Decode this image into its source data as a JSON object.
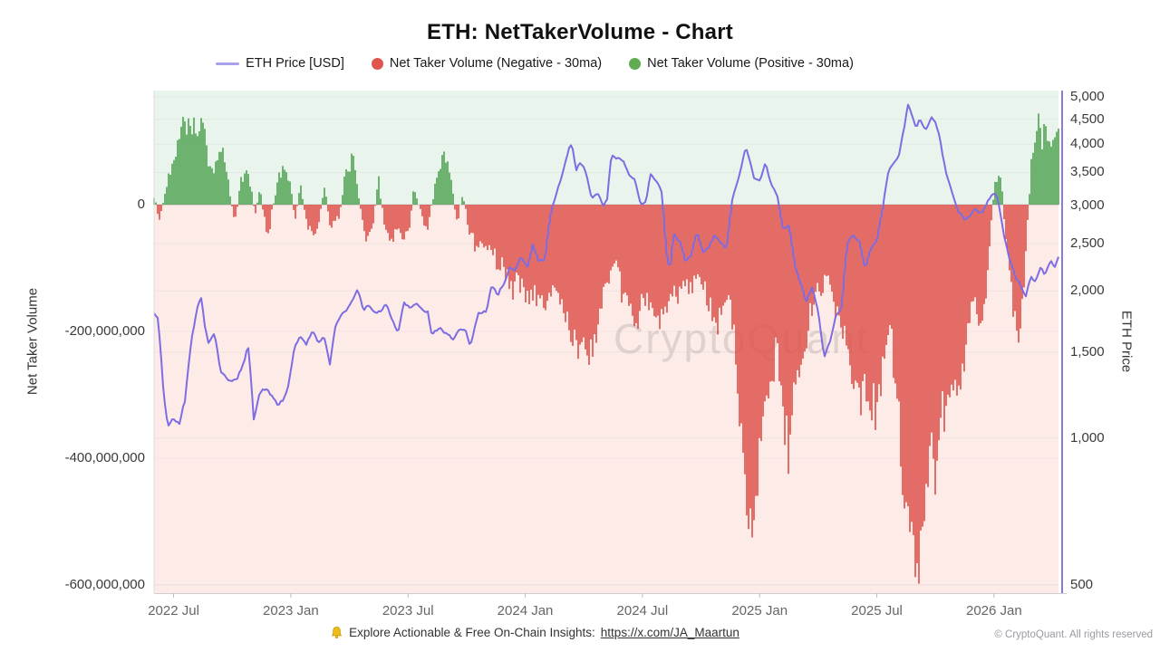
{
  "header": {
    "title": "ETH: NetTakerVolume - Chart"
  },
  "legend": [
    {
      "label": "ETH Price [USD]",
      "marker": "line",
      "color": "#a9a0ee"
    },
    {
      "label": "Net Taker Volume (Negative - 30ma)",
      "marker": "dot",
      "color": "#e0564f"
    },
    {
      "label": "Net Taker Volume (Positive - 30ma)",
      "marker": "dot",
      "color": "#61ab52"
    },
    {
      "label": "",
      "marker": "",
      "color": ""
    }
  ],
  "watermark": "CryptoQuant",
  "footer": {
    "bell_icon": "bell-icon",
    "text": "Explore Actionable & Free On-Chain Insights:",
    "link": "https://x.com/JA_Maartun",
    "copyright": "© CryptoQuant. All rights reserved"
  },
  "chart_data": {
    "type": "mixed-bar-line",
    "title": "ETH: NetTakerVolume - Chart",
    "x_axis": {
      "start": "2022-06",
      "months_total": 46.3,
      "labels": [
        {
          "label": "2022 Jul",
          "t": 1
        },
        {
          "label": "2023 Jan",
          "t": 7
        },
        {
          "label": "2023 Jul",
          "t": 13
        },
        {
          "label": "2024 Jan",
          "t": 19
        },
        {
          "label": "2024 Jul",
          "t": 25
        },
        {
          "label": "2025 Jan",
          "t": 31
        },
        {
          "label": "2025 Jul",
          "t": 37
        },
        {
          "label": "2026 Jan",
          "t": 43
        }
      ]
    },
    "volume_axis": {
      "title": "Net Taker Volume",
      "unit": "USD",
      "ticks": [
        0,
        -200000000,
        -400000000,
        -600000000
      ],
      "max_musd": 180,
      "min_musd": -613
    },
    "price_axis": {
      "title": "ETH Price",
      "scale": "log",
      "ticks": [
        5000,
        4500,
        4000,
        3500,
        3000,
        2500,
        2000,
        1500,
        1000,
        500
      ],
      "max": 5155,
      "min": 481
    },
    "colors": {
      "bar_positive": "#57a759",
      "bar_negative": "#e0564f",
      "price_line": "#7d6ce2",
      "right_axis_line": "#8a7ae0",
      "bg_positive": "#e9f4ec",
      "bg_negative": "#fcebe7"
    },
    "series_names": [
      "ETH Price [USD]",
      "Net Taker Volume (Negative - 30ma)",
      "Net Taker Volume (Positive - 30ma)"
    ],
    "volume_points_musd": [
      [
        0,
        10
      ],
      [
        0.3,
        -25
      ],
      [
        0.7,
        40
      ],
      [
        1,
        75
      ],
      [
        1.3,
        115
      ],
      [
        1.6,
        140
      ],
      [
        1.9,
        125
      ],
      [
        2.2,
        118
      ],
      [
        2.5,
        130
      ],
      [
        2.7,
        90
      ],
      [
        3,
        45
      ],
      [
        3.2,
        70
      ],
      [
        3.5,
        84
      ],
      [
        3.8,
        40
      ],
      [
        4.1,
        -35
      ],
      [
        4.4,
        30
      ],
      [
        4.7,
        55
      ],
      [
        5,
        25
      ],
      [
        5.2,
        -20
      ],
      [
        5.4,
        30
      ],
      [
        5.8,
        -55
      ],
      [
        6.2,
        20
      ],
      [
        6.6,
        65
      ],
      [
        7,
        30
      ],
      [
        7.2,
        -25
      ],
      [
        7.5,
        35
      ],
      [
        7.9,
        -40
      ],
      [
        8.3,
        -53
      ],
      [
        8.7,
        25
      ],
      [
        9.1,
        -40
      ],
      [
        9.5,
        -20
      ],
      [
        9.8,
        50
      ],
      [
        10.1,
        75
      ],
      [
        10.4,
        40
      ],
      [
        10.8,
        -60
      ],
      [
        11.2,
        -30
      ],
      [
        11.5,
        45
      ],
      [
        11.8,
        -35
      ],
      [
        12.2,
        -55
      ],
      [
        12.6,
        -40
      ],
      [
        13,
        -50
      ],
      [
        13.3,
        25
      ],
      [
        13.7,
        -20
      ],
      [
        14,
        -45
      ],
      [
        14.4,
        30
      ],
      [
        14.8,
        77
      ],
      [
        15.1,
        60
      ],
      [
        15.5,
        -30
      ],
      [
        15.8,
        15
      ],
      [
        16.2,
        -45
      ],
      [
        16.6,
        -70
      ],
      [
        17,
        -60
      ],
      [
        17.4,
        -80
      ],
      [
        17.8,
        -95
      ],
      [
        18.3,
        -130
      ],
      [
        18.8,
        -120
      ],
      [
        19.2,
        -150
      ],
      [
        19.6,
        -140
      ],
      [
        20,
        -160
      ],
      [
        20.4,
        -130
      ],
      [
        20.8,
        -150
      ],
      [
        21.2,
        -180
      ],
      [
        21.6,
        -235
      ],
      [
        22,
        -210
      ],
      [
        22.4,
        -245
      ],
      [
        22.8,
        -175
      ],
      [
        23.2,
        -120
      ],
      [
        23.5,
        -100
      ],
      [
        23.9,
        -130
      ],
      [
        24.3,
        -165
      ],
      [
        24.7,
        -180
      ],
      [
        25.1,
        -150
      ],
      [
        25.5,
        -170
      ],
      [
        25.9,
        -185
      ],
      [
        26.3,
        -160
      ],
      [
        26.7,
        -140
      ],
      [
        27.1,
        -115
      ],
      [
        27.5,
        -135
      ],
      [
        27.9,
        -105
      ],
      [
        28.3,
        -160
      ],
      [
        28.7,
        -196
      ],
      [
        29.1,
        -170
      ],
      [
        29.5,
        -145
      ],
      [
        29.8,
        -250
      ],
      [
        30.1,
        -400
      ],
      [
        30.4,
        -520
      ],
      [
        30.7,
        -480
      ],
      [
        31,
        -360
      ],
      [
        31.3,
        -300
      ],
      [
        31.6,
        -280
      ],
      [
        31.9,
        -230
      ],
      [
        32.2,
        -340
      ],
      [
        32.5,
        -377
      ],
      [
        32.8,
        -300
      ],
      [
        33.2,
        -250
      ],
      [
        33.6,
        -180
      ],
      [
        34,
        -130
      ],
      [
        34.4,
        -110
      ],
      [
        34.8,
        -150
      ],
      [
        35.2,
        -190
      ],
      [
        35.6,
        -245
      ],
      [
        36,
        -280
      ],
      [
        36.4,
        -315
      ],
      [
        36.8,
        -334
      ],
      [
        37.2,
        -290
      ],
      [
        37.6,
        -180
      ],
      [
        37.9,
        -250
      ],
      [
        38.2,
        -400
      ],
      [
        38.5,
        -480
      ],
      [
        38.8,
        -530
      ],
      [
        39.1,
        -575
      ],
      [
        39.4,
        -490
      ],
      [
        39.7,
        -400
      ],
      [
        40,
        -430
      ],
      [
        40.3,
        -350
      ],
      [
        40.7,
        -310
      ],
      [
        41.1,
        -280
      ],
      [
        41.5,
        -230
      ],
      [
        41.9,
        -150
      ],
      [
        42.3,
        -200
      ],
      [
        42.7,
        -110
      ],
      [
        43,
        25
      ],
      [
        43.2,
        54
      ],
      [
        43.4,
        40
      ],
      [
        43.6,
        -60
      ],
      [
        43.9,
        -130
      ],
      [
        44.2,
        -225
      ],
      [
        44.5,
        -160
      ],
      [
        44.7,
        -40
      ],
      [
        44.9,
        60
      ],
      [
        45.1,
        100
      ],
      [
        45.3,
        140
      ],
      [
        45.5,
        95
      ],
      [
        45.7,
        130
      ],
      [
        45.9,
        80
      ],
      [
        46.1,
        120
      ],
      [
        46.3,
        105
      ]
    ],
    "price_points_usd": [
      [
        0,
        1800
      ],
      [
        0.2,
        1760
      ],
      [
        0.5,
        1210
      ],
      [
        0.7,
        1060
      ],
      [
        1,
        1100
      ],
      [
        1.3,
        1070
      ],
      [
        1.6,
        1200
      ],
      [
        1.9,
        1580
      ],
      [
        2.2,
        1830
      ],
      [
        2.4,
        1930
      ],
      [
        2.6,
        1700
      ],
      [
        2.8,
        1550
      ],
      [
        3.1,
        1640
      ],
      [
        3.4,
        1350
      ],
      [
        3.7,
        1320
      ],
      [
        4,
        1310
      ],
      [
        4.3,
        1340
      ],
      [
        4.6,
        1420
      ],
      [
        4.8,
        1560
      ],
      [
        5.1,
        1090
      ],
      [
        5.4,
        1230
      ],
      [
        5.7,
        1260
      ],
      [
        6,
        1230
      ],
      [
        6.3,
        1180
      ],
      [
        6.6,
        1190
      ],
      [
        6.9,
        1290
      ],
      [
        7.2,
        1540
      ],
      [
        7.5,
        1620
      ],
      [
        7.8,
        1560
      ],
      [
        8.1,
        1670
      ],
      [
        8.4,
        1560
      ],
      [
        8.7,
        1610
      ],
      [
        9,
        1420
      ],
      [
        9.3,
        1720
      ],
      [
        9.6,
        1790
      ],
      [
        9.9,
        1850
      ],
      [
        10.2,
        1920
      ],
      [
        10.4,
        2010
      ],
      [
        10.7,
        1830
      ],
      [
        11,
        1870
      ],
      [
        11.3,
        1790
      ],
      [
        11.6,
        1830
      ],
      [
        11.9,
        1880
      ],
      [
        12.2,
        1730
      ],
      [
        12.5,
        1650
      ],
      [
        12.8,
        1890
      ],
      [
        13.1,
        1870
      ],
      [
        13.4,
        1890
      ],
      [
        13.7,
        1840
      ],
      [
        14,
        1830
      ],
      [
        14.2,
        1640
      ],
      [
        14.6,
        1680
      ],
      [
        15,
        1630
      ],
      [
        15.3,
        1590
      ],
      [
        15.6,
        1660
      ],
      [
        15.9,
        1670
      ],
      [
        16.2,
        1550
      ],
      [
        16.6,
        1790
      ],
      [
        17,
        1810
      ],
      [
        17.3,
        2050
      ],
      [
        17.6,
        1970
      ],
      [
        17.9,
        2060
      ],
      [
        18.2,
        2250
      ],
      [
        18.5,
        2200
      ],
      [
        18.8,
        2360
      ],
      [
        19.1,
        2230
      ],
      [
        19.4,
        2480
      ],
      [
        19.7,
        2300
      ],
      [
        20,
        2320
      ],
      [
        20.3,
        2900
      ],
      [
        20.6,
        3180
      ],
      [
        20.9,
        3450
      ],
      [
        21.2,
        3900
      ],
      [
        21.4,
        4000
      ],
      [
        21.6,
        3540
      ],
      [
        21.8,
        3680
      ],
      [
        22.1,
        3520
      ],
      [
        22.4,
        3080
      ],
      [
        22.7,
        3180
      ],
      [
        23,
        2980
      ],
      [
        23.2,
        3100
      ],
      [
        23.4,
        3780
      ],
      [
        23.7,
        3740
      ],
      [
        24,
        3680
      ],
      [
        24.3,
        3460
      ],
      [
        24.6,
        3380
      ],
      [
        24.9,
        3020
      ],
      [
        25.2,
        3080
      ],
      [
        25.4,
        3490
      ],
      [
        25.7,
        3380
      ],
      [
        26,
        3170
      ],
      [
        26.2,
        2450
      ],
      [
        26.4,
        2190
      ],
      [
        26.6,
        2620
      ],
      [
        26.9,
        2520
      ],
      [
        27.2,
        2310
      ],
      [
        27.5,
        2360
      ],
      [
        27.8,
        2640
      ],
      [
        28.1,
        2400
      ],
      [
        28.4,
        2480
      ],
      [
        28.7,
        2620
      ],
      [
        29,
        2510
      ],
      [
        29.3,
        2450
      ],
      [
        29.6,
        3080
      ],
      [
        29.9,
        3350
      ],
      [
        30.1,
        3640
      ],
      [
        30.3,
        3950
      ],
      [
        30.5,
        3700
      ],
      [
        30.7,
        3420
      ],
      [
        31,
        3350
      ],
      [
        31.3,
        3660
      ],
      [
        31.6,
        3280
      ],
      [
        31.9,
        3140
      ],
      [
        32.2,
        2680
      ],
      [
        32.5,
        2730
      ],
      [
        32.8,
        2250
      ],
      [
        33.1,
        2080
      ],
      [
        33.4,
        1900
      ],
      [
        33.7,
        2020
      ],
      [
        34,
        1820
      ],
      [
        34.3,
        1450
      ],
      [
        34.6,
        1580
      ],
      [
        34.9,
        1790
      ],
      [
        35.2,
        1830
      ],
      [
        35.5,
        2520
      ],
      [
        35.8,
        2610
      ],
      [
        36.1,
        2540
      ],
      [
        36.4,
        2240
      ],
      [
        36.7,
        2440
      ],
      [
        37,
        2560
      ],
      [
        37.3,
        2960
      ],
      [
        37.6,
        3560
      ],
      [
        37.9,
        3660
      ],
      [
        38.1,
        3740
      ],
      [
        38.4,
        4280
      ],
      [
        38.6,
        4830
      ],
      [
        38.8,
        4600
      ],
      [
        39,
        4320
      ],
      [
        39.2,
        4480
      ],
      [
        39.5,
        4300
      ],
      [
        39.8,
        4550
      ],
      [
        40,
        4480
      ],
      [
        40.2,
        4150
      ],
      [
        40.35,
        3820
      ],
      [
        40.6,
        3440
      ],
      [
        40.9,
        3150
      ],
      [
        41.2,
        2900
      ],
      [
        41.5,
        2780
      ],
      [
        41.8,
        2860
      ],
      [
        42.1,
        2950
      ],
      [
        42.4,
        2890
      ],
      [
        42.7,
        3080
      ],
      [
        43,
        3200
      ],
      [
        43.2,
        3060
      ],
      [
        43.5,
        2620
      ],
      [
        43.8,
        2300
      ],
      [
        44.1,
        2140
      ],
      [
        44.4,
        2050
      ],
      [
        44.6,
        1930
      ],
      [
        44.9,
        2150
      ],
      [
        45.1,
        2090
      ],
      [
        45.4,
        2230
      ],
      [
        45.6,
        2160
      ],
      [
        45.9,
        2290
      ],
      [
        46.1,
        2230
      ],
      [
        46.3,
        2340
      ]
    ]
  }
}
